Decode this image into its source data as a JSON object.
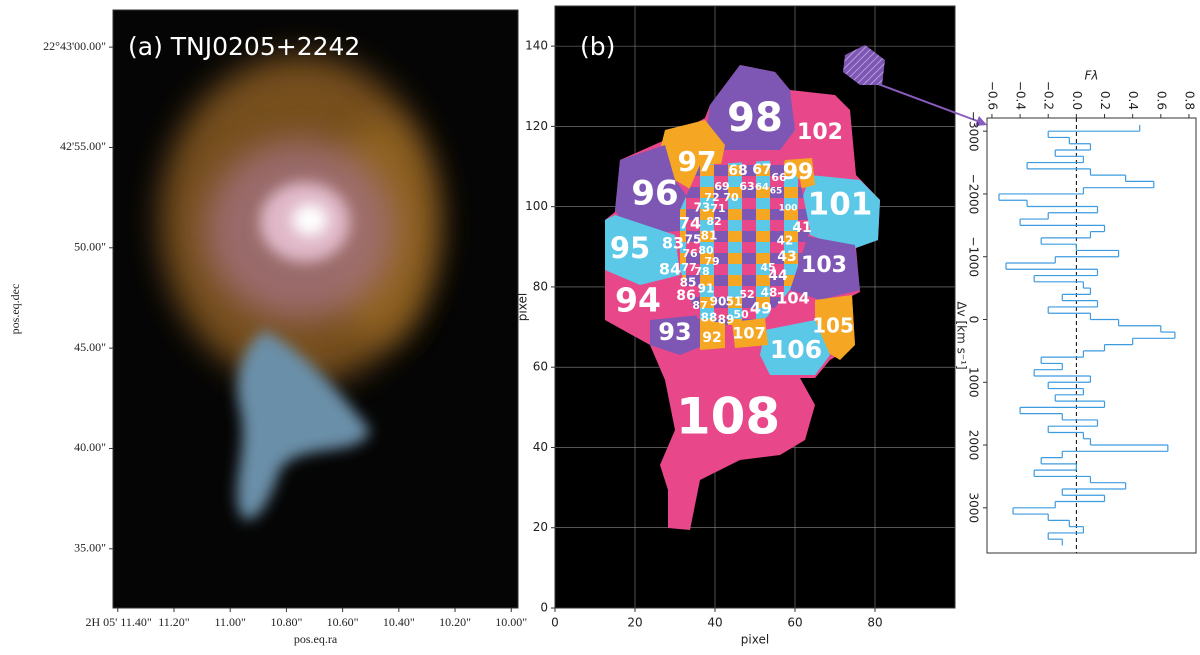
{
  "chart_data": [
    {
      "type": "image",
      "title": "(a) TNJ0205+2242",
      "xlabel": "pos.eq.ra",
      "ylabel": "pos.eq.dec",
      "xlim": [
        11.417,
        9.976
      ],
      "ylim": [
        32.05,
        61.85
      ],
      "xticks": [
        {
          "value": 11.4,
          "label": "2H 05' 11.40\""
        },
        {
          "value": 11.2,
          "label": "11.20\""
        },
        {
          "value": 11.0,
          "label": "11.00\""
        },
        {
          "value": 10.8,
          "label": "10.80\""
        },
        {
          "value": 10.6,
          "label": "10.60\""
        },
        {
          "value": 10.4,
          "label": "10.40\""
        },
        {
          "value": 10.2,
          "label": "10.20\""
        },
        {
          "value": 10.0,
          "label": "10.00\""
        }
      ],
      "yticks": [
        {
          "value": 60,
          "label": "22°43'00.00\""
        },
        {
          "value": 55,
          "label": "42'55.00\""
        },
        {
          "value": 50,
          "label": "50.00\""
        },
        {
          "value": 45,
          "label": "45.00\""
        },
        {
          "value": 40,
          "label": "40.00\""
        },
        {
          "value": 35,
          "label": "35.00\""
        }
      ]
    },
    {
      "type": "segmentation",
      "title": "(b)",
      "xlabel": "pixel",
      "ylabel": "pixel",
      "xlim": [
        0,
        100
      ],
      "ylim": [
        0,
        150
      ],
      "xticks": [
        0,
        20,
        40,
        60,
        80
      ],
      "yticks": [
        0,
        20,
        40,
        60,
        80,
        100,
        120,
        140
      ],
      "grid": true,
      "region_labels": [
        "98",
        "102",
        "97",
        "96",
        "101",
        "95",
        "103",
        "94",
        "93",
        "105",
        "106",
        "104",
        "108",
        "107",
        "92",
        "99",
        "68",
        "67",
        "66",
        "74",
        "83",
        "84",
        "86",
        "41",
        "42",
        "43",
        "44",
        "48",
        "49",
        "88",
        "89",
        "90",
        "51",
        "91",
        "85",
        "73",
        "69",
        "63",
        "64",
        "70",
        "72",
        "71",
        "81",
        "75",
        "76",
        "80",
        "82",
        "78",
        "77",
        "79",
        "87",
        "50",
        "45",
        "52",
        "65",
        "100"
      ]
    },
    {
      "type": "step",
      "xlabel": "Fλ",
      "ylabel": "Δv [km s⁻¹]",
      "xlim": [
        -0.635,
        0.85
      ],
      "ylim": [
        -3210,
        3720
      ],
      "xticks": [
        {
          "value": -0.6,
          "label": "−0.6"
        },
        {
          "value": -0.4,
          "label": "−0.4"
        },
        {
          "value": -0.2,
          "label": "−0.2"
        },
        {
          "value": 0,
          "label": "0.0"
        },
        0.2,
        0.4,
        0.6,
        0.8
      ],
      "yticks": [
        {
          "value": -3000,
          "label": "−3000"
        },
        {
          "value": -2000,
          "label": "−2000"
        },
        {
          "value": -1000,
          "label": "−1000"
        },
        0,
        1000,
        2000,
        3000
      ],
      "series": [
        {
          "color": "#3d9be0",
          "bins": [
            -3100,
            -3000,
            -2900,
            -2800,
            -2700,
            -2600,
            -2500,
            -2400,
            -2300,
            -2200,
            -2100,
            -2000,
            -1900,
            -1800,
            -1700,
            -1600,
            -1500,
            -1400,
            -1300,
            -1200,
            -1100,
            -1000,
            -900,
            -800,
            -700,
            -600,
            -500,
            -400,
            -300,
            -200,
            -100,
            0,
            100,
            200,
            300,
            400,
            500,
            600,
            700,
            800,
            900,
            1000,
            1100,
            1200,
            1300,
            1400,
            1500,
            1600,
            1700,
            1800,
            1900,
            2000,
            2100,
            2200,
            2300,
            2400,
            2500,
            2600,
            2700,
            2800,
            2900,
            3000,
            3100,
            3200,
            3300,
            3400,
            3500,
            3600
          ],
          "values": [
            0.45,
            -0.2,
            -0.05,
            0.1,
            -0.15,
            0.05,
            -0.35,
            0.1,
            0.35,
            0.55,
            0.05,
            -0.55,
            -0.35,
            0.15,
            -0.2,
            -0.4,
            0.2,
            0.1,
            -0.25,
            0,
            0.3,
            -0.15,
            -0.5,
            0.15,
            -0.3,
            0.05,
            0.1,
            -0.1,
            0.15,
            -0.2,
            0.1,
            0.3,
            0.6,
            0.7,
            0.4,
            0.2,
            0.05,
            -0.25,
            -0.1,
            -0.3,
            0.1,
            -0.2,
            0.05,
            -0.15,
            0.2,
            -0.4,
            -0.1,
            0.15,
            -0.2,
            0.05,
            0.1,
            0.65,
            -0.1,
            -0.25,
            0,
            -0.3,
            0.1,
            0.35,
            -0.1,
            0.2,
            -0.15,
            -0.45,
            -0.2,
            -0.05,
            0.05,
            -0.2,
            -0.1
          ]
        }
      ]
    }
  ]
}
